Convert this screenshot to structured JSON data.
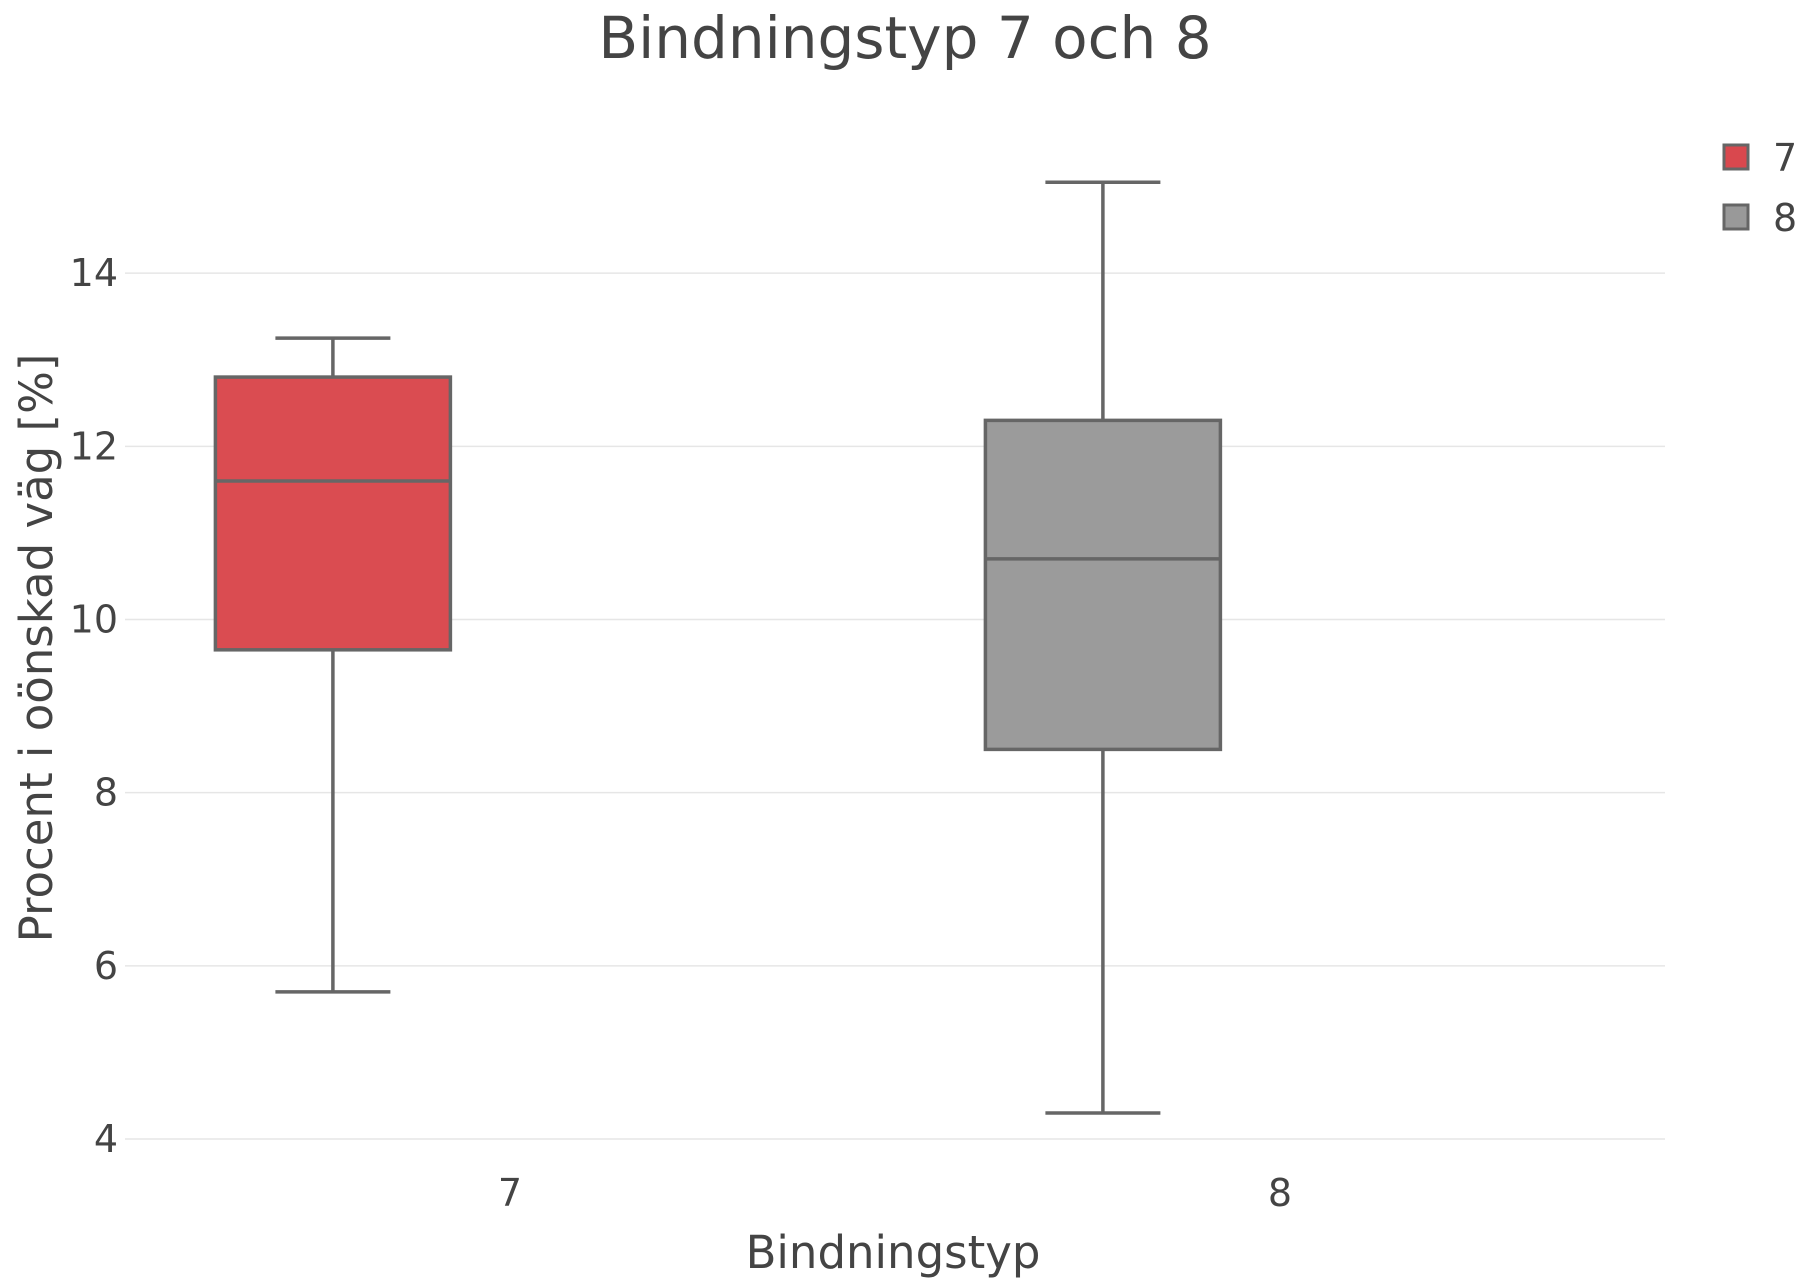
{
  "chart_data": {
    "type": "box",
    "title": "Bindningstyp 7 och 8",
    "xlabel": "Bindningstyp",
    "ylabel": "Procent i oönskad väg [%]",
    "categories": [
      "7",
      "8"
    ],
    "ylim": [
      3.7,
      16.0
    ],
    "y_ticks": [
      "4",
      "6",
      "8",
      "10",
      "12",
      "14"
    ],
    "grid": true,
    "legend_position": "top-right",
    "series": [
      {
        "name": "7",
        "color": "#d9484e",
        "lower_whisker": 5.7,
        "q1": 9.65,
        "median": 11.6,
        "q3": 12.8,
        "upper_whisker": 13.25
      },
      {
        "name": "8",
        "color": "#999999",
        "lower_whisker": 4.3,
        "q1": 8.5,
        "median": 10.7,
        "q3": 12.3,
        "upper_whisker": 15.05
      }
    ]
  }
}
